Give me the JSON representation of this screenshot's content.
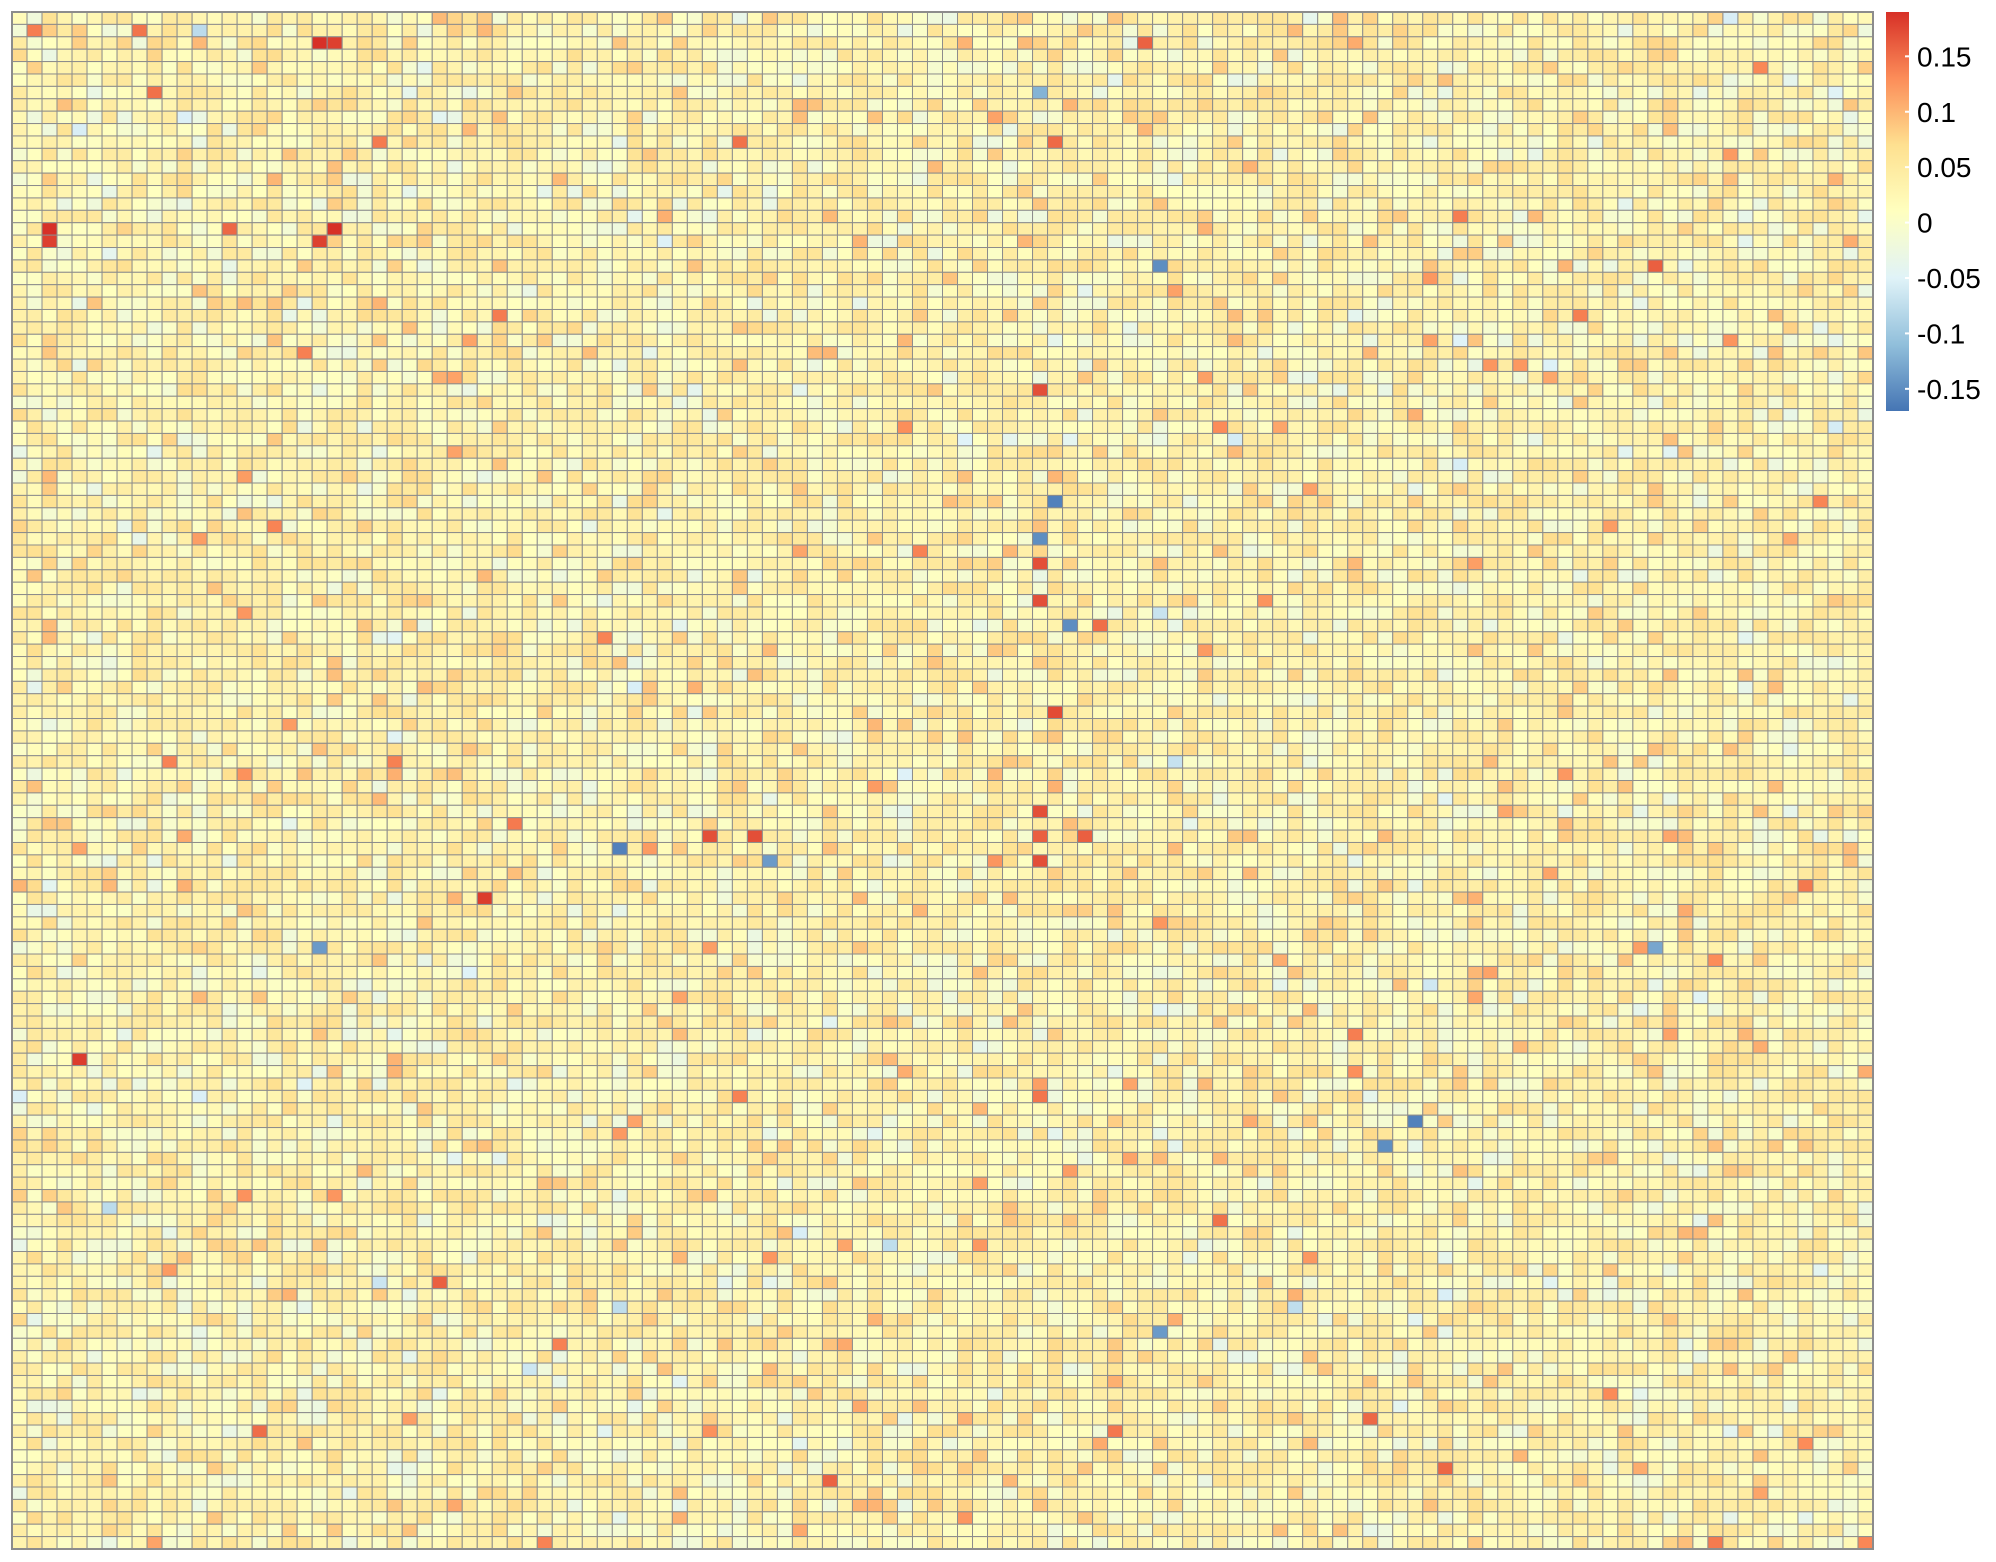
{
  "chart_data": {
    "type": "heatmap",
    "title": "",
    "xlabel": "",
    "ylabel": "",
    "rows": 124,
    "cols": 124,
    "value_range": [
      -0.17,
      0.19
    ],
    "colorbar": {
      "ticks": [
        {
          "value": 0.15,
          "label": "0.15"
        },
        {
          "value": 0.1,
          "label": "0.1"
        },
        {
          "value": 0.05,
          "label": "0.05"
        },
        {
          "value": 0,
          "label": "0"
        },
        {
          "value": -0.05,
          "label": "-0.05"
        },
        {
          "value": -0.1,
          "label": "-0.1"
        },
        {
          "value": -0.15,
          "label": "-0.15"
        }
      ],
      "palette": [
        "#4575B4",
        "#91BFDB",
        "#E0F3F8",
        "#FFFFBF",
        "#FEE090",
        "#FC8D59",
        "#D73027"
      ]
    },
    "cell_border_color": "#8C8C8C",
    "grid": true,
    "highlighted_cells": [
      {
        "row": 2,
        "col": 20,
        "value": 0.19
      },
      {
        "row": 2,
        "col": 21,
        "value": 0.18
      },
      {
        "row": 17,
        "col": 2,
        "value": 0.19
      },
      {
        "row": 18,
        "col": 2,
        "value": 0.18
      },
      {
        "row": 17,
        "col": 21,
        "value": 0.19
      },
      {
        "row": 18,
        "col": 20,
        "value": 0.18
      },
      {
        "row": 6,
        "col": 68,
        "value": -0.12
      },
      {
        "row": 30,
        "col": 68,
        "value": 0.17
      },
      {
        "row": 39,
        "col": 69,
        "value": -0.16
      },
      {
        "row": 42,
        "col": 68,
        "value": -0.15
      },
      {
        "row": 44,
        "col": 68,
        "value": 0.17
      },
      {
        "row": 47,
        "col": 68,
        "value": 0.17
      },
      {
        "row": 49,
        "col": 70,
        "value": -0.15
      },
      {
        "row": 49,
        "col": 72,
        "value": 0.15
      },
      {
        "row": 64,
        "col": 68,
        "value": 0.17
      },
      {
        "row": 66,
        "col": 68,
        "value": 0.16
      },
      {
        "row": 67,
        "col": 40,
        "value": -0.16
      },
      {
        "row": 66,
        "col": 46,
        "value": 0.17
      },
      {
        "row": 66,
        "col": 49,
        "value": 0.17
      },
      {
        "row": 66,
        "col": 71,
        "value": 0.16
      },
      {
        "row": 68,
        "col": 68,
        "value": 0.17
      },
      {
        "row": 68,
        "col": 50,
        "value": -0.14
      },
      {
        "row": 75,
        "col": 20,
        "value": -0.14
      },
      {
        "row": 75,
        "col": 109,
        "value": -0.13
      },
      {
        "row": 89,
        "col": 93,
        "value": -0.16
      },
      {
        "row": 91,
        "col": 91,
        "value": -0.15
      },
      {
        "row": 106,
        "col": 76,
        "value": -0.14
      },
      {
        "row": 20,
        "col": 76,
        "value": -0.15
      }
    ]
  }
}
